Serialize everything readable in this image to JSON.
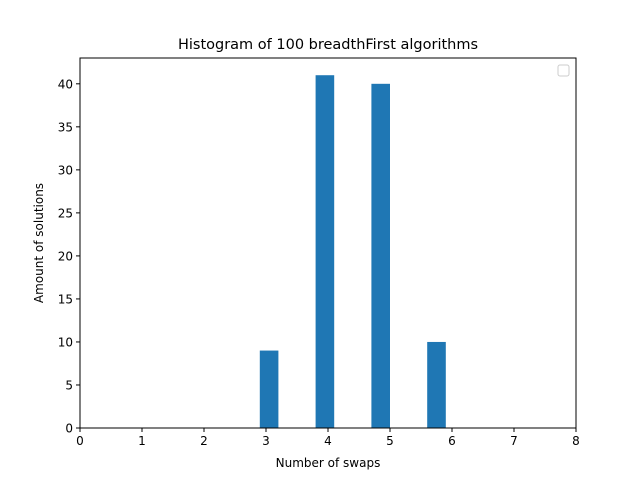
{
  "chart_data": {
    "type": "bar",
    "title": "Histogram of 100 breadthFirst algorithms",
    "xlabel": "Number of swaps",
    "ylabel": "Amount of solutions",
    "xlim": [
      0,
      8
    ],
    "ylim": [
      0,
      43
    ],
    "x_ticks": [
      "0",
      "1",
      "2",
      "3",
      "4",
      "5",
      "6",
      "7",
      "8"
    ],
    "y_ticks": [
      "0",
      "5",
      "10",
      "15",
      "20",
      "25",
      "30",
      "35",
      "40"
    ],
    "bins": [
      {
        "x_start": 2.9,
        "x_end": 3.2,
        "value": 9
      },
      {
        "x_start": 3.8,
        "x_end": 4.1,
        "value": 41
      },
      {
        "x_start": 4.7,
        "x_end": 5.0,
        "value": 40
      },
      {
        "x_start": 5.6,
        "x_end": 5.9,
        "value": 10
      }
    ],
    "bar_color": "#1f77b4",
    "grid": false,
    "legend": {
      "placement": "top-right",
      "entries": []
    }
  }
}
